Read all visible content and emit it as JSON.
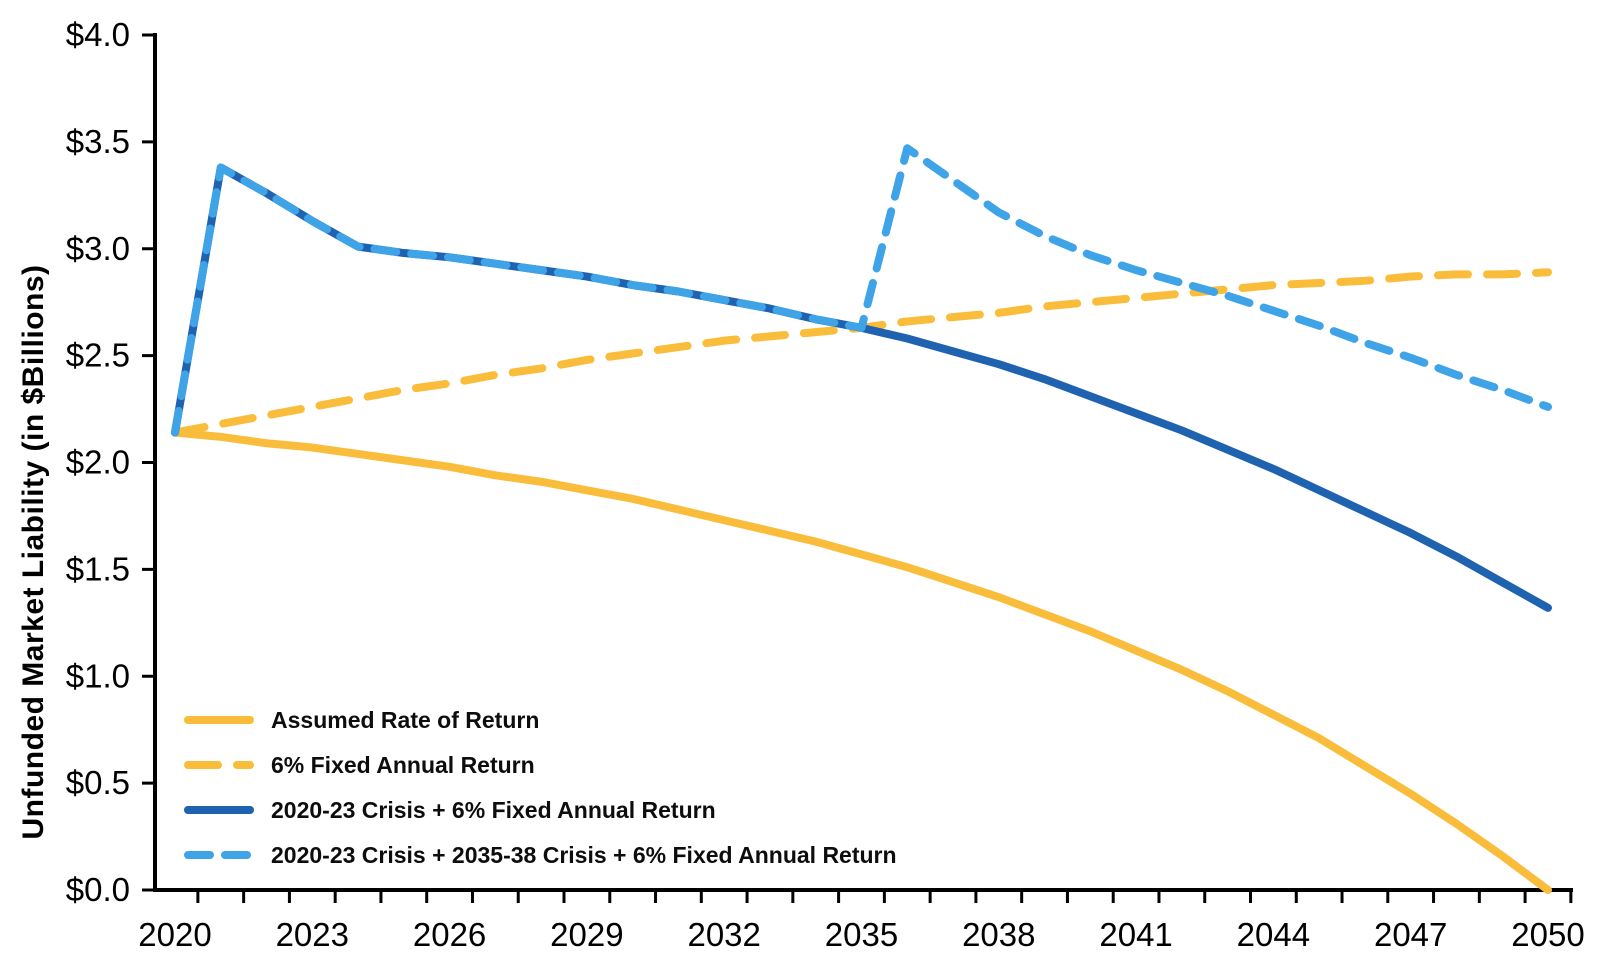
{
  "chart_data": {
    "type": "line",
    "title": "",
    "ylabel": "Unfunded Market Liability (in $Billions)",
    "xlabel": "",
    "ylim": [
      0.0,
      4.0
    ],
    "grid": false,
    "legend_position": "inside-bottom-left",
    "background": "#FFFFFF",
    "axis_color": "#000000",
    "text_color": "#000000",
    "x": [
      2020,
      2021,
      2022,
      2023,
      2024,
      2025,
      2026,
      2027,
      2028,
      2029,
      2030,
      2031,
      2032,
      2033,
      2034,
      2035,
      2036,
      2037,
      2038,
      2039,
      2040,
      2041,
      2042,
      2043,
      2044,
      2045,
      2046,
      2047,
      2048,
      2049,
      2050
    ],
    "x_tick_labels": [
      2020,
      2023,
      2026,
      2029,
      2032,
      2035,
      2038,
      2041,
      2044,
      2047,
      2050
    ],
    "y_ticks": [
      {
        "value": 0.0,
        "label": "$0.0"
      },
      {
        "value": 0.5,
        "label": "$0.5"
      },
      {
        "value": 1.0,
        "label": "$1.0"
      },
      {
        "value": 1.5,
        "label": "$1.5"
      },
      {
        "value": 2.0,
        "label": "$2.0"
      },
      {
        "value": 2.5,
        "label": "$2.5"
      },
      {
        "value": 3.0,
        "label": "$3.0"
      },
      {
        "value": 3.5,
        "label": "$3.5"
      },
      {
        "value": 4.0,
        "label": "$4.0"
      }
    ],
    "series": [
      {
        "id": "assumed-rate-of-return",
        "name": "Assumed Rate of Return",
        "color": "#F9BD3B",
        "style": "solid",
        "dash": null,
        "values": [
          2.14,
          2.12,
          2.09,
          2.07,
          2.04,
          2.01,
          1.98,
          1.94,
          1.91,
          1.87,
          1.83,
          1.78,
          1.73,
          1.68,
          1.63,
          1.57,
          1.51,
          1.44,
          1.37,
          1.29,
          1.21,
          1.12,
          1.03,
          0.93,
          0.82,
          0.71,
          0.58,
          0.45,
          0.31,
          0.16,
          0.0
        ]
      },
      {
        "id": "6pct-fixed-annual-return",
        "name": "6% Fixed Annual Return",
        "color": "#F9BD3B",
        "style": "dashed",
        "dash": [
          30,
          19
        ],
        "values": [
          2.14,
          2.18,
          2.22,
          2.26,
          2.3,
          2.34,
          2.37,
          2.41,
          2.44,
          2.48,
          2.51,
          2.54,
          2.57,
          2.59,
          2.61,
          2.63,
          2.66,
          2.68,
          2.7,
          2.73,
          2.75,
          2.77,
          2.79,
          2.81,
          2.83,
          2.84,
          2.85,
          2.87,
          2.88,
          2.88,
          2.89
        ]
      },
      {
        "id": "2020-23-crisis-plus-6pct-fixed",
        "name": "2020-23 Crisis + 6% Fixed Annual Return",
        "color": "#1E62B0",
        "style": "solid",
        "dash": null,
        "values": [
          2.14,
          3.38,
          3.26,
          3.13,
          3.01,
          2.98,
          2.96,
          2.93,
          2.9,
          2.87,
          2.83,
          2.8,
          2.76,
          2.72,
          2.67,
          2.63,
          2.58,
          2.52,
          2.46,
          2.39,
          2.31,
          2.23,
          2.15,
          2.06,
          1.97,
          1.87,
          1.77,
          1.67,
          1.56,
          1.44,
          1.32
        ]
      },
      {
        "id": "2020-23-crisis-plus-2035-38-crisis-plus-6pct-fixed",
        "name": "2020-23 Crisis + 2035-38 Crisis + 6% Fixed Annual Return",
        "color": "#3FA3E8",
        "style": "dashed",
        "dash": [
          22,
          15
        ],
        "values": [
          2.14,
          3.38,
          3.26,
          3.13,
          3.01,
          2.98,
          2.96,
          2.93,
          2.9,
          2.87,
          2.83,
          2.8,
          2.76,
          2.72,
          2.67,
          2.63,
          3.47,
          3.32,
          3.17,
          3.06,
          2.97,
          2.9,
          2.84,
          2.78,
          2.71,
          2.64,
          2.56,
          2.49,
          2.41,
          2.34,
          2.26
        ]
      }
    ]
  }
}
